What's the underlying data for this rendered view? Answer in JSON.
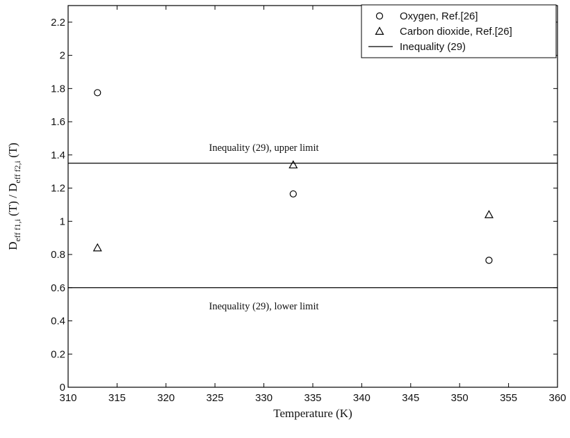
{
  "chart_data": {
    "type": "scatter",
    "xlabel": "Temperature (K)",
    "ylabel": {
      "main1": "D",
      "sub1": "eff f1,i",
      "mid": " (T) / D",
      "sub2": "eff f2,i",
      "tail": " (T)"
    },
    "xlim": [
      310,
      360
    ],
    "ylim": [
      0,
      2.3
    ],
    "x_ticks": [
      "310",
      "315",
      "320",
      "325",
      "330",
      "335",
      "340",
      "345",
      "350",
      "355",
      "360"
    ],
    "y_ticks": [
      "0",
      "0.2",
      "0.4",
      "0.6",
      "0.8",
      "1",
      "1.2",
      "1.4",
      "1.6",
      "1.8",
      "2",
      "2.2"
    ],
    "grid": false,
    "legend_position": "top-right",
    "series": [
      {
        "name": "Oxygen, Ref.[26]",
        "marker": "circle",
        "x": [
          313,
          333,
          353
        ],
        "y": [
          1.775,
          1.165,
          0.765
        ]
      },
      {
        "name": "Carbon dioxide, Ref.[26]",
        "marker": "triangle",
        "x": [
          313,
          333,
          353
        ],
        "y": [
          0.84,
          1.34,
          1.04
        ]
      }
    ],
    "lines": [
      {
        "name": "Inequality (29)",
        "y": 1.35,
        "annotation": "Inequality (29), upper limit"
      },
      {
        "name": "Inequality (29)",
        "y": 0.6,
        "annotation": "Inequality (29), lower limit"
      }
    ],
    "legend": [
      "Oxygen, Ref.[26]",
      "Carbon dioxide, Ref.[26]",
      "Inequality (29)"
    ]
  }
}
